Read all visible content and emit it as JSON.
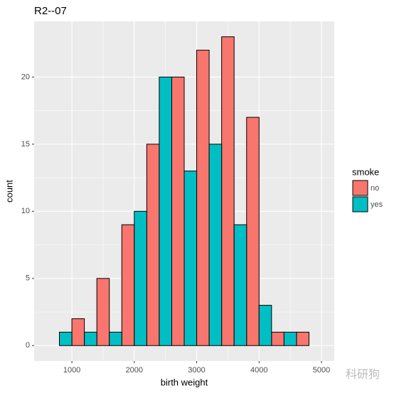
{
  "chart_data": {
    "type": "histogram",
    "title": "R2--07",
    "xlabel": "birth weight",
    "ylabel": "count",
    "bins": [
      600,
      1000,
      1400,
      1800,
      2200,
      2600,
      3000,
      3400,
      3800,
      4200,
      4600,
      5000
    ],
    "series": [
      {
        "name": "no",
        "color": "#F8766D",
        "values": [
          0,
          2,
          5,
          9,
          15,
          20,
          22,
          23,
          17,
          1,
          1
        ]
      },
      {
        "name": "yes",
        "color": "#00BFC4",
        "values": [
          1,
          1,
          1,
          10,
          20,
          13,
          15,
          9,
          3,
          1,
          0
        ]
      }
    ],
    "xlim": [
      395,
      5205
    ],
    "xticks": [
      1000,
      2000,
      3000,
      4000,
      5000
    ],
    "ylim": [
      -1.15,
      24.15
    ],
    "yticks": [
      0,
      5,
      10,
      15,
      20
    ],
    "grid": true,
    "legend_title": "smoke",
    "legend_position": "right",
    "watermark": "科研狗"
  }
}
